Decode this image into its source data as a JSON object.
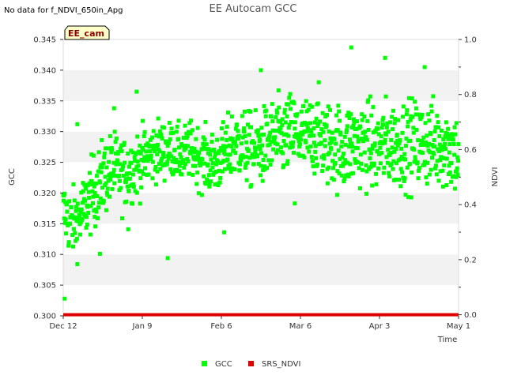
{
  "notice": "No data for f_NDVI_650in_Apg",
  "chart_data": {
    "type": "scatter",
    "title": "EE Autocam GCC",
    "site_label": "EE_cam",
    "xlabel": "Time",
    "ylabel_left": "GCC",
    "ylabel_right": "NDVI",
    "x_ticks": [
      "Dec 12",
      "Jan 9",
      "Feb 6",
      "Mar 6",
      "Apr 3",
      "May 1"
    ],
    "x_range_days": [
      0,
      140
    ],
    "ylim_left": [
      0.3,
      0.345
    ],
    "y_ticks_left": [
      "0.300",
      "0.305",
      "0.310",
      "0.315",
      "0.320",
      "0.325",
      "0.330",
      "0.335",
      "0.340",
      "0.345"
    ],
    "ylim_right": [
      -0.004,
      1.0
    ],
    "y_ticks_right": [
      "0.0",
      "0.2",
      "0.4",
      "0.6",
      "0.8",
      "1.0"
    ],
    "grid": "alternating horizontal bands",
    "legend_position": "bottom-center",
    "series": [
      {
        "name": "GCC",
        "color": "#00ff00",
        "marker": "square",
        "points_note": "approx. daily GCC trend (day offset from Dec 12, gcc); individual observations scatter around these values",
        "trend": [
          [
            0,
            0.317
          ],
          [
            3,
            0.315
          ],
          [
            6,
            0.316
          ],
          [
            9,
            0.319
          ],
          [
            12,
            0.321
          ],
          [
            15,
            0.323
          ],
          [
            18,
            0.324
          ],
          [
            21,
            0.323
          ],
          [
            24,
            0.324
          ],
          [
            27,
            0.325
          ],
          [
            30,
            0.326
          ],
          [
            33,
            0.327
          ],
          [
            36,
            0.327
          ],
          [
            39,
            0.327
          ],
          [
            42,
            0.326
          ],
          [
            45,
            0.327
          ],
          [
            48,
            0.326
          ],
          [
            51,
            0.325
          ],
          [
            54,
            0.325
          ],
          [
            57,
            0.326
          ],
          [
            60,
            0.328
          ],
          [
            63,
            0.328
          ],
          [
            66,
            0.327
          ],
          [
            69,
            0.327
          ],
          [
            72,
            0.328
          ],
          [
            75,
            0.329
          ],
          [
            78,
            0.329
          ],
          [
            81,
            0.33
          ],
          [
            84,
            0.329
          ],
          [
            87,
            0.329
          ],
          [
            90,
            0.33
          ],
          [
            93,
            0.328
          ],
          [
            96,
            0.328
          ],
          [
            99,
            0.327
          ],
          [
            102,
            0.328
          ],
          [
            105,
            0.328
          ],
          [
            108,
            0.328
          ],
          [
            111,
            0.327
          ],
          [
            114,
            0.328
          ],
          [
            117,
            0.328
          ],
          [
            120,
            0.328
          ],
          [
            123,
            0.328
          ],
          [
            126,
            0.328
          ],
          [
            129,
            0.328
          ],
          [
            132,
            0.328
          ],
          [
            135,
            0.328
          ],
          [
            138,
            0.327
          ],
          [
            140,
            0.326
          ]
        ],
        "spread": [
          [
            0,
            0.006
          ],
          [
            15,
            0.007
          ],
          [
            40,
            0.005
          ],
          [
            70,
            0.007
          ],
          [
            100,
            0.008
          ],
          [
            140,
            0.008
          ]
        ],
        "outliers": [
          [
            0.5,
            0.3028
          ],
          [
            5,
            0.3312
          ],
          [
            13,
            0.3101
          ],
          [
            18,
            0.3338
          ],
          [
            23,
            0.3141
          ],
          [
            26,
            0.3365
          ],
          [
            37,
            0.3094
          ],
          [
            57,
            0.3136
          ],
          [
            70,
            0.34
          ],
          [
            82,
            0.3183
          ],
          [
            102,
            0.3437
          ],
          [
            114,
            0.342
          ],
          [
            128,
            0.3405
          ]
        ]
      },
      {
        "name": "SRS_NDVI",
        "color": "#dd0000",
        "marker": "square",
        "points_note": "NDVI values plotted on right axis along the bottom of the chart",
        "value": 0.0
      }
    ]
  }
}
